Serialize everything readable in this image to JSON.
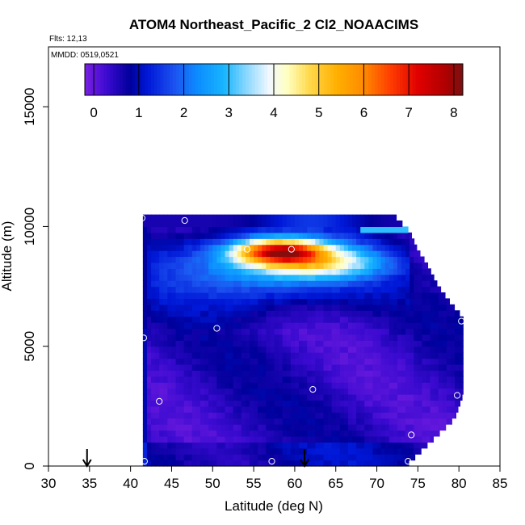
{
  "chart_data": {
    "type": "heatmap",
    "title": "ATOM4 Northeast_Pacific_2 Cl2_NOAACIMS",
    "flights_label": "Flts: 12,13",
    "dates_label": "MMDD: 0519,0521",
    "xlabel": "Latitude (deg N)",
    "ylabel": "Altitude (m)",
    "xlim": [
      30,
      85
    ],
    "ylim": [
      0,
      17500
    ],
    "x_ticks": [
      30,
      35,
      40,
      45,
      50,
      55,
      60,
      65,
      70,
      75,
      80,
      85
    ],
    "y_ticks": [
      0,
      5000,
      10000,
      15000
    ],
    "colorbar": {
      "min": -0.2,
      "max": 8.2,
      "ticks": [
        0,
        1,
        2,
        3,
        4,
        5,
        6,
        7,
        8
      ],
      "placement": "top inside plot"
    },
    "color_stops": [
      {
        "v": -0.2,
        "c": "#7b1fe3"
      },
      {
        "v": 0.3,
        "c": "#3a0ad0"
      },
      {
        "v": 0.8,
        "c": "#00009a"
      },
      {
        "v": 1.2,
        "c": "#0018d8"
      },
      {
        "v": 1.8,
        "c": "#1c54f0"
      },
      {
        "v": 2.3,
        "c": "#0c8cff"
      },
      {
        "v": 2.9,
        "c": "#18b6ff"
      },
      {
        "v": 3.4,
        "c": "#8cd8ff"
      },
      {
        "v": 3.9,
        "c": "#f2f8ff"
      },
      {
        "v": 4.3,
        "c": "#ffffc0"
      },
      {
        "v": 4.8,
        "c": "#ffd84a"
      },
      {
        "v": 5.4,
        "c": "#ffb000"
      },
      {
        "v": 6.0,
        "c": "#ff8a00"
      },
      {
        "v": 6.6,
        "c": "#ff3c00"
      },
      {
        "v": 7.2,
        "c": "#e00000"
      },
      {
        "v": 7.8,
        "c": "#b00000"
      },
      {
        "v": 8.2,
        "c": "#7a1010"
      }
    ],
    "field": {
      "lat_min": 41.5,
      "lat_max": 80.5,
      "lat_step": 0.5,
      "alt_step": 250,
      "background_value": 0.45,
      "upper_layer_alt_range": [
        5800,
        10500
      ],
      "upper_layer_lat_max": 74,
      "plume_peak_value": 7.6,
      "plume_center": [
        58,
        9000
      ],
      "right_edge_max_lat_by_alt": [
        [
          0,
          73.5
        ],
        [
          500,
          75
        ],
        [
          1000,
          76.5
        ],
        [
          1500,
          78
        ],
        [
          2000,
          79.5
        ],
        [
          3000,
          80.5
        ],
        [
          6200,
          80.5
        ],
        [
          6800,
          79
        ],
        [
          7500,
          77.5
        ],
        [
          8500,
          76
        ],
        [
          9000,
          75
        ],
        [
          9800,
          74
        ],
        [
          10500,
          72
        ]
      ]
    },
    "downward_arrows_lat": [
      34.7,
      61.2
    ],
    "sample_points": [
      {
        "lat": 41.4,
        "alt": 10350
      },
      {
        "lat": 46.6,
        "alt": 10250
      },
      {
        "lat": 54.2,
        "alt": 9050
      },
      {
        "lat": 59.6,
        "alt": 9050
      },
      {
        "lat": 76.8,
        "alt": 8900
      },
      {
        "lat": 80.3,
        "alt": 6050
      },
      {
        "lat": 50.5,
        "alt": 5750
      },
      {
        "lat": 41.6,
        "alt": 5350
      },
      {
        "lat": 62.2,
        "alt": 3200
      },
      {
        "lat": 43.5,
        "alt": 2700
      },
      {
        "lat": 79.8,
        "alt": 2950
      },
      {
        "lat": 74.2,
        "alt": 1300
      },
      {
        "lat": 41.7,
        "alt": 200
      },
      {
        "lat": 57.2,
        "alt": 200
      },
      {
        "lat": 73.8,
        "alt": 200
      }
    ]
  }
}
